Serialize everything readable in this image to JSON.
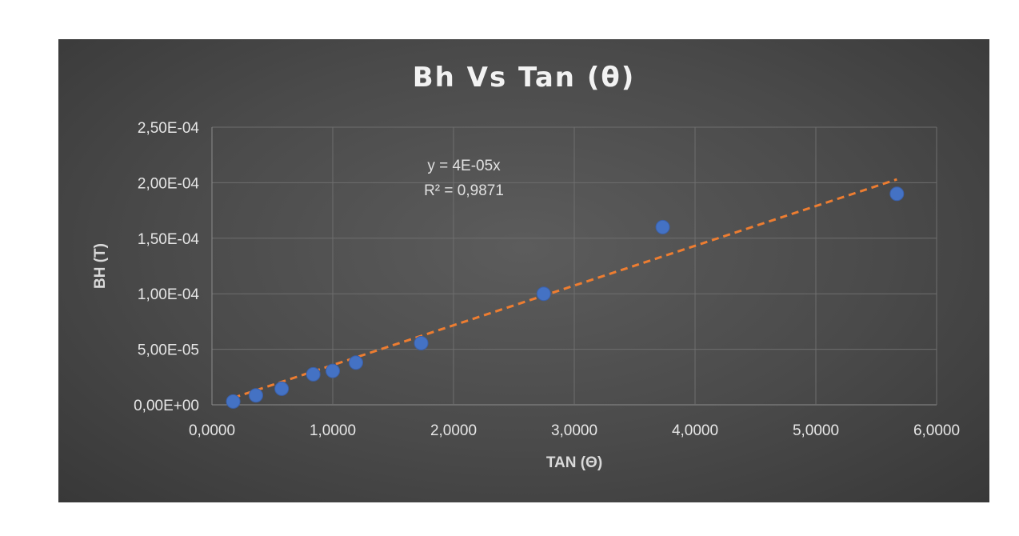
{
  "chart_data": {
    "type": "scatter",
    "title": "Bh Vs Tan (θ)",
    "xlabel": "TAN (Θ)",
    "ylabel": "BH (T)",
    "xlim": [
      0,
      6
    ],
    "ylim": [
      0,
      0.00025
    ],
    "x_ticks": [
      "0,0000",
      "1,0000",
      "2,0000",
      "3,0000",
      "4,0000",
      "5,0000",
      "6,0000"
    ],
    "y_ticks": [
      "0,00E+00",
      "5,00E-05",
      "1,00E-04",
      "1,50E-04",
      "2,00E-04",
      "2,50E-04"
    ],
    "grid": true,
    "legend": "none",
    "point_color": "#4472c4",
    "trendline_color": "#ed7d31",
    "series": [
      {
        "x": [
          0.176,
          0.364,
          0.577,
          0.839,
          1.0,
          1.192,
          1.732,
          2.747,
          3.732,
          5.671
        ],
        "y": [
          3e-06,
          8.5e-06,
          1.45e-05,
          2.75e-05,
          3.05e-05,
          3.8e-05,
          5.55e-05,
          0.0001,
          0.00016,
          0.00019
        ]
      }
    ],
    "trendline": {
      "type": "linear",
      "slope": 3.58e-05,
      "x_range": [
        0.176,
        5.671
      ],
      "equation": "y = 4E-05x",
      "r_squared": "R² = 0,9871"
    }
  }
}
